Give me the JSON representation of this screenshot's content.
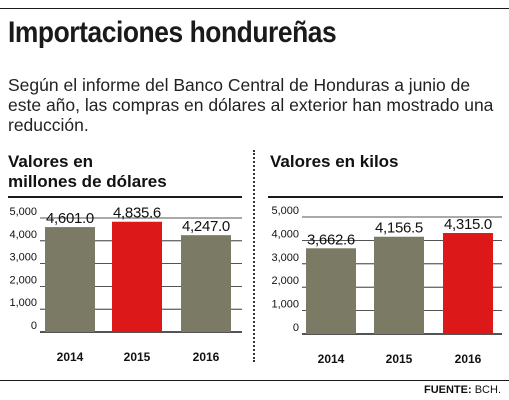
{
  "title": "Importaciones hondureñas",
  "subtitle": "Según el informe del Banco Central de Honduras a junio de este año, las compras en dólares al exterior han mostrado una reducción.",
  "colors": {
    "olive": "#7a7a65",
    "red": "#dd1818",
    "grid": "#1a1a1a"
  },
  "chart_data": [
    {
      "type": "bar",
      "title": "Valores en millones de dólares",
      "title_lines": [
        "Valores en",
        "millones de dólares"
      ],
      "categories": [
        "2014",
        "2015",
        "2016"
      ],
      "values": [
        4601.0,
        4835.6,
        4247.0
      ],
      "value_labels": [
        "4,601.0",
        "4,835.6",
        "4,247.0"
      ],
      "bar_colors": [
        "#7a7a65",
        "#dd1818",
        "#7a7a65"
      ],
      "yticks": [
        0,
        1000,
        2000,
        3000,
        4000,
        5000
      ],
      "ytick_labels": [
        "0",
        "1,000",
        "2,000",
        "3,000",
        "4,000",
        "5,000"
      ],
      "ylim": [
        0,
        5000
      ],
      "grid": true
    },
    {
      "type": "bar",
      "title": "Valores en kilos",
      "title_lines": [
        "Valores en kilos"
      ],
      "categories": [
        "2014",
        "2015",
        "2016"
      ],
      "values": [
        3662.6,
        4156.5,
        4315.0
      ],
      "value_labels": [
        "3,662.6",
        "4,156.5",
        "4,315.0"
      ],
      "bar_colors": [
        "#7a7a65",
        "#7a7a65",
        "#dd1818"
      ],
      "yticks": [
        0,
        1000,
        2000,
        3000,
        4000,
        5000
      ],
      "ytick_labels": [
        "0",
        "1,000",
        "2,000",
        "3,000",
        "4,000",
        "5,000"
      ],
      "ylim": [
        0,
        5000
      ],
      "grid": true
    }
  ],
  "source": {
    "label": "FUENTE:",
    "text": "BCH."
  }
}
